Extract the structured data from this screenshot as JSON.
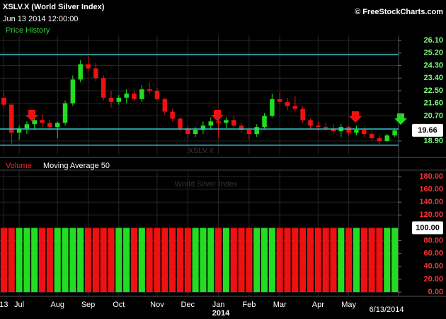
{
  "credit": "© FreeStockCharts.com",
  "chart_data": [
    {
      "type": "candlestick",
      "title": "XSLV.X (World Silver Index)",
      "subtitle": "Jun 13 2014 12:00:00",
      "label": "Price History",
      "watermark": "XSLV.X",
      "watermark_subtitle": "World Silver Index",
      "categories": [
        "13",
        null,
        "Jul",
        null,
        null,
        null,
        null,
        "Aug",
        null,
        null,
        null,
        "Sep",
        null,
        null,
        null,
        "Oct",
        null,
        null,
        null,
        null,
        "Nov",
        null,
        null,
        null,
        "Dec",
        null,
        null,
        null,
        "Jan",
        null,
        null,
        null,
        "Feb",
        null,
        null,
        null,
        "Mar",
        null,
        null,
        null,
        null,
        "Apr",
        null,
        null,
        null,
        "May",
        null,
        null,
        null,
        null,
        null,
        null
      ],
      "year_label": "2014",
      "end_label": "6/13/2014",
      "open": [
        22.0,
        21.5,
        19.5,
        19.8,
        20.1,
        20.4,
        20.2,
        19.9,
        20.2,
        21.6,
        23.3,
        24.4,
        24.1,
        23.4,
        22.0,
        21.7,
        22.0,
        22.3,
        21.9,
        22.6,
        22.5,
        21.9,
        21.0,
        20.5,
        19.8,
        19.4,
        19.7,
        20.0,
        20.3,
        20.2,
        20.4,
        20.0,
        19.7,
        19.4,
        19.9,
        20.7,
        21.9,
        21.7,
        21.4,
        21.2,
        20.4,
        20.0,
        19.9,
        19.8,
        19.6,
        19.9,
        19.5,
        19.7,
        19.4,
        19.1,
        18.9,
        19.3
      ],
      "high": [
        22.5,
        21.6,
        20.0,
        20.3,
        20.6,
        20.8,
        20.4,
        20.3,
        21.8,
        23.6,
        24.7,
        25.0,
        24.5,
        23.6,
        22.5,
        22.2,
        22.6,
        22.5,
        22.9,
        23.1,
        22.7,
        22.0,
        21.2,
        20.6,
        20.0,
        19.9,
        20.3,
        20.6,
        20.7,
        20.6,
        20.7,
        20.2,
        19.9,
        20.1,
        20.9,
        22.3,
        22.4,
        22.0,
        22.1,
        21.4,
        20.5,
        20.3,
        20.2,
        20.1,
        20.1,
        20.0,
        20.0,
        19.8,
        19.6,
        19.3,
        19.4,
        19.8
      ],
      "low": [
        21.3,
        18.7,
        19.0,
        19.4,
        19.7,
        19.9,
        19.7,
        19.1,
        20.0,
        21.4,
        23.1,
        23.9,
        23.2,
        21.8,
        21.3,
        21.5,
        21.6,
        21.8,
        21.7,
        22.3,
        21.8,
        20.8,
        20.3,
        19.6,
        19.1,
        19.2,
        19.4,
        19.7,
        19.1,
        19.8,
        19.9,
        19.5,
        19.0,
        19.2,
        19.8,
        20.6,
        21.5,
        21.1,
        21.0,
        20.2,
        19.7,
        19.6,
        19.6,
        19.4,
        19.2,
        19.3,
        19.3,
        19.2,
        19.0,
        18.7,
        18.8,
        19.2
      ],
      "close": [
        21.5,
        19.5,
        19.8,
        20.1,
        20.4,
        20.2,
        19.9,
        20.2,
        21.6,
        23.3,
        24.4,
        24.1,
        23.4,
        22.0,
        21.7,
        22.0,
        22.3,
        21.9,
        22.6,
        22.5,
        21.9,
        21.0,
        20.5,
        19.8,
        19.4,
        19.7,
        20.0,
        20.3,
        20.2,
        20.4,
        20.0,
        19.7,
        19.4,
        19.9,
        20.7,
        21.9,
        21.7,
        21.4,
        21.2,
        20.4,
        20.0,
        19.9,
        19.8,
        19.6,
        19.9,
        19.5,
        19.7,
        19.4,
        19.1,
        18.9,
        19.3,
        19.66
      ],
      "up_color": "#22dd22",
      "down_color": "#ee1111",
      "ylim": [
        17.93,
        26.46
      ],
      "yticks": [
        {
          "value": 18.9,
          "label": "18.90"
        },
        {
          "value": 20.7,
          "label": "20.70"
        },
        {
          "value": 21.6,
          "label": "21.60"
        },
        {
          "value": 22.5,
          "label": "22.50"
        },
        {
          "value": 23.4,
          "label": "23.40"
        },
        {
          "value": 24.3,
          "label": "24.30"
        },
        {
          "value": 25.2,
          "label": "25.20"
        },
        {
          "value": 26.1,
          "label": "26.10"
        }
      ],
      "levels": [
        25.08,
        19.76,
        18.6
      ],
      "level_color": "#33cccc",
      "last_price": 19.66,
      "grid": true
    },
    {
      "type": "bar",
      "series": [
        {
          "name": "Volume",
          "color": "#ff2222",
          "values": [
            100,
            100,
            100,
            100,
            100,
            100,
            100,
            100,
            100,
            100,
            100,
            100,
            100,
            100,
            100,
            100,
            100,
            100,
            100,
            100,
            100,
            100,
            100,
            100,
            100,
            100,
            100,
            100,
            100,
            100,
            100,
            100,
            100,
            100,
            100,
            100,
            100,
            100,
            100,
            100,
            100,
            100,
            100,
            100,
            100,
            100,
            100,
            100,
            100,
            100,
            100,
            100
          ]
        }
      ],
      "indicator": "Moving Average 50",
      "last_label": "100.00",
      "up_color": "#22dd22",
      "down_color": "#ee1111",
      "ylim": [
        -6.5,
        189.8
      ],
      "yticks": [
        {
          "value": 0,
          "label": "0.00"
        },
        {
          "value": 20,
          "label": "20.00"
        },
        {
          "value": 40,
          "label": "40.00"
        },
        {
          "value": 60,
          "label": "60.00"
        },
        {
          "value": 80,
          "label": "80.00"
        },
        {
          "value": 120,
          "label": "120.00"
        },
        {
          "value": 140,
          "label": "140.00"
        },
        {
          "value": 160,
          "label": "160.00"
        },
        {
          "value": 180,
          "label": "180.00"
        }
      ],
      "grid": true
    }
  ]
}
